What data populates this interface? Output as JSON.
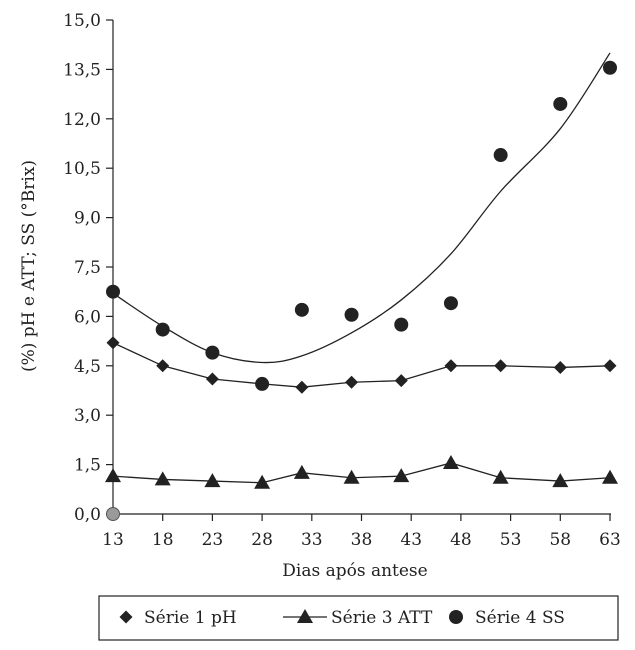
{
  "chart_data": {
    "type": "scatter",
    "title": "",
    "xlabel": "Dias após antese",
    "ylabel": "(%) pH e ATT; SS (°Brix)",
    "x_ticks": [
      "13",
      "18",
      "23",
      "28",
      "33",
      "38",
      "43",
      "48",
      "53",
      "58",
      "63"
    ],
    "y_ticks": [
      "0,0",
      "1,5",
      "3,0",
      "4,5",
      "6,0",
      "7,5",
      "9,0",
      "10,5",
      "12,0",
      "13,5",
      "15,0"
    ],
    "xlim": [
      13,
      63
    ],
    "ylim": [
      0,
      15
    ],
    "grid": false,
    "legend_position": "bottom",
    "series": [
      {
        "name": "Série 1 pH",
        "marker": "diamond",
        "line": true,
        "x": [
          13,
          18,
          23,
          28,
          32,
          37,
          42,
          47,
          52,
          58,
          63
        ],
        "y": [
          5.2,
          4.5,
          4.1,
          3.95,
          3.85,
          4.0,
          4.05,
          4.5,
          4.5,
          4.45,
          4.5
        ]
      },
      {
        "name": "Série 3 ATT",
        "marker": "triangle",
        "line": true,
        "x": [
          13,
          18,
          23,
          28,
          32,
          37,
          42,
          47,
          52,
          58,
          63
        ],
        "y": [
          1.15,
          1.05,
          1.0,
          0.95,
          1.25,
          1.1,
          1.15,
          1.55,
          1.1,
          1.0,
          1.1
        ]
      },
      {
        "name": "Série 4 SS",
        "marker": "circle",
        "line": false,
        "x": [
          13,
          18,
          23,
          28,
          32,
          37,
          42,
          47,
          52,
          58,
          63
        ],
        "y": [
          6.75,
          5.6,
          4.9,
          3.95,
          6.2,
          6.05,
          5.75,
          6.4,
          10.9,
          12.45,
          13.55
        ]
      },
      {
        "name": "",
        "marker": "none",
        "line": true,
        "x": [
          13,
          18,
          23,
          28,
          32,
          37,
          42,
          47,
          52,
          58,
          63
        ],
        "y": [
          6.7,
          5.7,
          4.9,
          4.6,
          4.8,
          5.5,
          6.5,
          7.9,
          9.8,
          11.7,
          14.0
        ]
      }
    ],
    "annotations": [
      {
        "x": 13,
        "y": 0.0,
        "marker": "circle",
        "color": "#9a9a9a"
      }
    ]
  },
  "colors": {
    "ink": "#222222",
    "origin_marker": "#9a9a9a"
  }
}
